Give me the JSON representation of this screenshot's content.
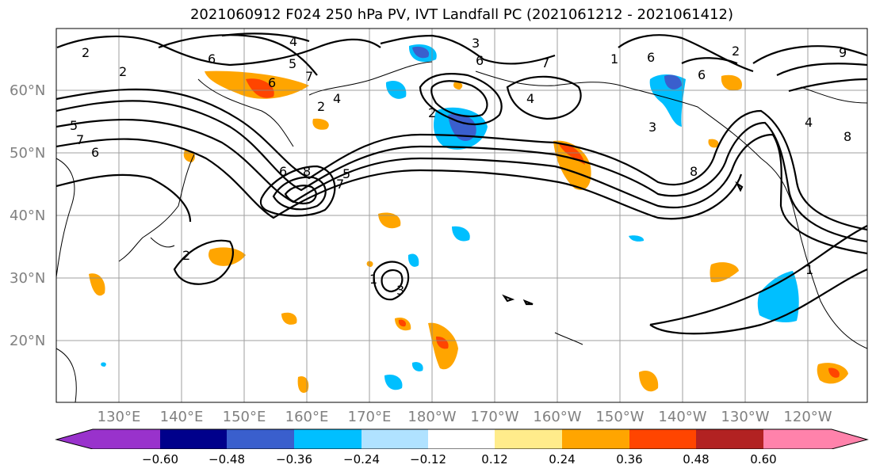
{
  "title": "2021060912 F024 250 hPa PV, IVT Landfall PC (2021061212 - 2021061412)",
  "lat_labels": [
    "60°N",
    "50°N",
    "40°N",
    "30°N",
    "20°N"
  ],
  "lon_labels": [
    "130°E",
    "140°E",
    "150°E",
    "160°E",
    "170°E",
    "180°W",
    "170°W",
    "160°W",
    "150°W",
    "140°W",
    "130°W",
    "120°W"
  ],
  "colorbar": {
    "colors": [
      "#9932cc",
      "#00008b",
      "#3a5fcd",
      "#00bfff",
      "#b0e2ff",
      "#ffffff",
      "#ffec8b",
      "#ffa500",
      "#ff4500",
      "#b22222",
      "#ff82ab"
    ],
    "tick_labels": [
      "−0.60",
      "−0.48",
      "−0.36",
      "−0.24",
      "−0.12",
      "0.12",
      "0.24",
      "0.36",
      "0.48",
      "0.60"
    ]
  },
  "contour_labels": [
    "2",
    "2",
    "4",
    "6",
    "5",
    "6",
    "7",
    "5",
    "7",
    "6",
    "4",
    "2",
    "6",
    "8",
    "7",
    "5",
    "3",
    "6",
    "2",
    "4",
    "7",
    "1",
    "6",
    "3",
    "8",
    "6",
    "2",
    "9",
    "4",
    "8",
    "1",
    "3",
    "2",
    "1"
  ]
}
